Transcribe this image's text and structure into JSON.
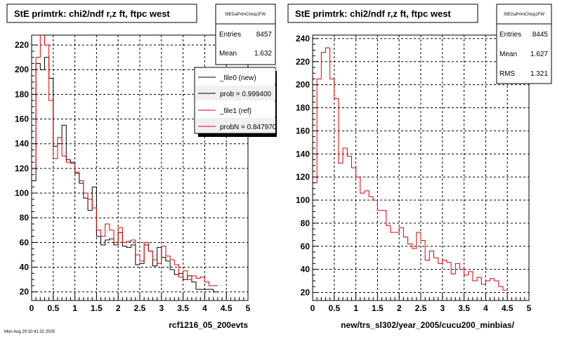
{
  "colors": {
    "new": "#000000",
    "ref": "#dd0000",
    "background": "#ffffff",
    "panel": "#ffffff"
  },
  "footer_text": "Mon Aug 29 10:41:32 2005",
  "chart_data": [
    {
      "type": "line",
      "title": "StE primtrk: chi2/ndf r,z ft, ftpc west",
      "xlabel": "rcf1216_05_200evts",
      "ylabel": "",
      "xlim": [
        0,
        5
      ],
      "ylim": [
        13,
        228
      ],
      "x_ticks": [
        "0",
        "0.5",
        "1",
        "1.5",
        "2",
        "2.5",
        "3",
        "3.5",
        "4",
        "4.5",
        "5"
      ],
      "y_ticks": [
        "20",
        "40",
        "60",
        "80",
        "100",
        "120",
        "140",
        "160",
        "180",
        "200",
        "220"
      ],
      "grid": true,
      "stats": {
        "name": "StEGaPrimChisq1FW",
        "entries_label": "Entries",
        "entries": "8457",
        "mean_label": "Mean",
        "mean": "1.632"
      },
      "legend": [
        "_file0 (new)",
        "prob = 0.999400",
        "_file1 (ref)",
        "probN = 0.847970"
      ],
      "legend_colors": [
        "#000000",
        "#000000",
        "#dd0000",
        "#dd0000"
      ],
      "bin_width": 0.1,
      "series": [
        {
          "name": "_file0 (new)",
          "color": "#000000",
          "values": [
            110,
            205,
            200,
            210,
            193,
            138,
            140,
            155,
            127,
            125,
            116,
            108,
            96,
            86,
            105,
            65,
            58,
            62,
            63,
            58,
            68,
            57,
            56,
            58,
            42,
            43,
            58,
            53,
            41,
            56,
            48,
            45,
            38,
            34,
            35,
            30,
            33,
            28,
            22,
            22,
            22,
            22,
            20
          ]
        },
        {
          "name": "_file1 (ref)",
          "color": "#dd0000",
          "values": [
            120,
            210,
            235,
            220,
            175,
            128,
            145,
            130,
            125,
            124,
            117,
            110,
            100,
            95,
            88,
            70,
            65,
            75,
            70,
            60,
            72,
            60,
            61,
            62,
            50,
            45,
            60,
            53,
            46,
            43,
            57,
            49,
            46,
            42,
            32,
            37,
            30,
            33,
            31,
            32,
            28,
            25,
            25
          ]
        }
      ]
    },
    {
      "type": "line",
      "title": "StE primtrk: chi2/ndf r,z ft, ftpc west",
      "xlabel": "new/trs_sl302/year_2005/cucu200_minbias/",
      "ylabel": "",
      "xlim": [
        0,
        5
      ],
      "ylim": [
        13,
        243
      ],
      "x_ticks": [
        "0",
        "0.5",
        "1",
        "1.5",
        "2",
        "2.5",
        "3",
        "3.5",
        "4",
        "4.5",
        "5"
      ],
      "y_ticks": [
        "20",
        "40",
        "60",
        "80",
        "100",
        "120",
        "140",
        "160",
        "180",
        "200",
        "220",
        "240"
      ],
      "grid": true,
      "stats": {
        "name": "StEGaPrimChisq1FW",
        "entries_label": "Entries",
        "entries": "8445",
        "mean_label": "Mean",
        "mean": "1.627",
        "rms_label": "RMS",
        "rms": "1.321"
      },
      "bin_width": 0.1,
      "series": [
        {
          "name": "",
          "color": "#dd0000",
          "values": [
            115,
            205,
            228,
            232,
            205,
            188,
            132,
            145,
            138,
            128,
            120,
            106,
            108,
            103,
            100,
            91,
            91,
            78,
            72,
            72,
            76,
            68,
            62,
            58,
            72,
            65,
            48,
            56,
            50,
            45,
            48,
            46,
            36,
            45,
            40,
            35,
            38,
            30,
            33,
            27,
            30,
            32,
            30,
            25,
            22
          ]
        }
      ]
    }
  ]
}
